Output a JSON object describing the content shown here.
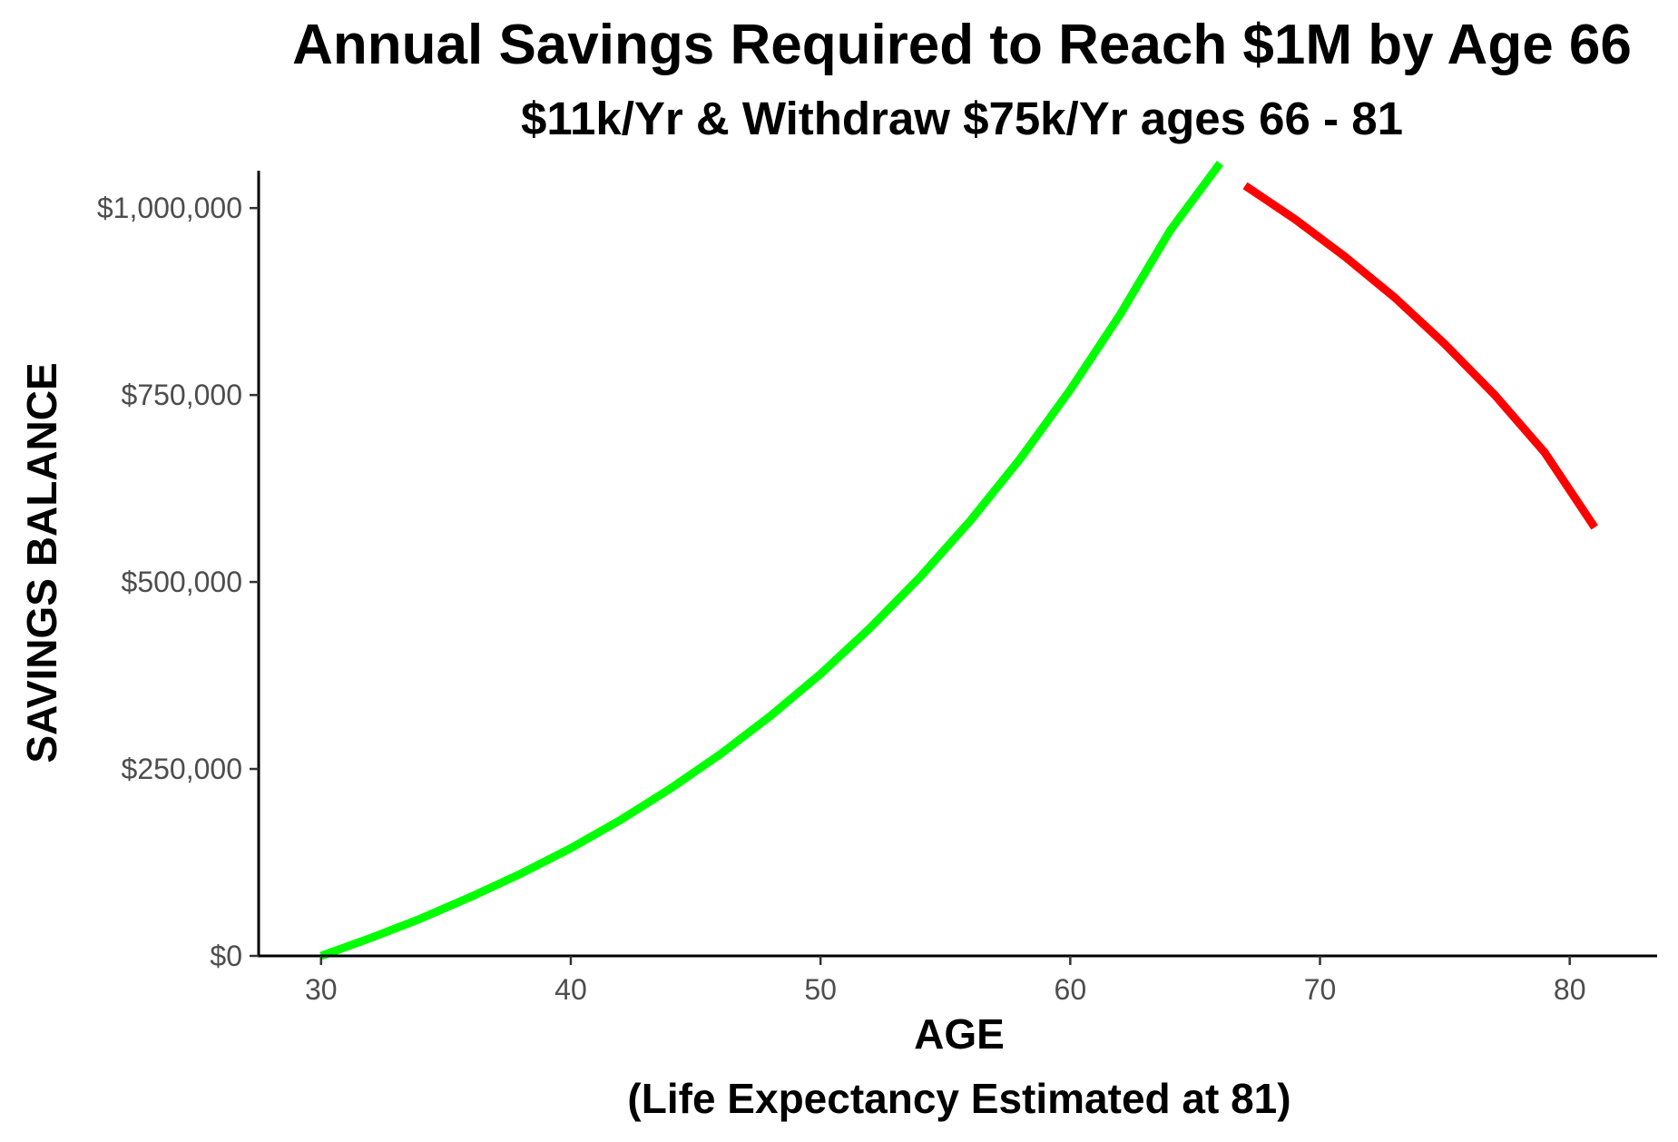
{
  "chart_data": {
    "type": "line",
    "title": "Annual Savings Required to Reach $1M by Age 66",
    "subtitle": "$11k/Yr & Withdraw $75k/Yr ages 66 - 81",
    "xlabel": "AGE",
    "xlabel_note": "(Life Expectancy Estimated at 81)",
    "ylabel": "SAVINGS BALANCE",
    "xlim": [
      27.5,
      83.5
    ],
    "ylim": [
      0,
      1050000
    ],
    "x_ticks": [
      30,
      40,
      50,
      60,
      70,
      80
    ],
    "x_tick_labels": [
      "30",
      "40",
      "50",
      "60",
      "70",
      "80"
    ],
    "y_ticks": [
      0,
      250000,
      500000,
      750000,
      1000000
    ],
    "y_tick_labels": [
      "$0",
      "$250,000",
      "$500,000",
      "$750,000",
      "$1,000,000"
    ],
    "grid": false,
    "legend": "none",
    "series": [
      {
        "color": "#00ff00",
        "x": [
          30,
          32,
          34,
          36,
          38,
          40,
          42,
          44,
          46,
          48,
          50,
          52,
          54,
          56,
          58,
          60,
          62,
          64,
          66
        ],
        "values": [
          0,
          24000,
          50000,
          79000,
          110000,
          144000,
          182000,
          224000,
          270000,
          321000,
          377000,
          439000,
          507000,
          582000,
          665000,
          757000,
          858000,
          970000,
          1060000
        ]
      },
      {
        "color": "#ff0000",
        "x": [
          67,
          69,
          71,
          73,
          75,
          77,
          79,
          81
        ],
        "values": [
          1030000,
          985000,
          935000,
          880000,
          818000,
          750000,
          673000,
          573000
        ]
      }
    ]
  }
}
